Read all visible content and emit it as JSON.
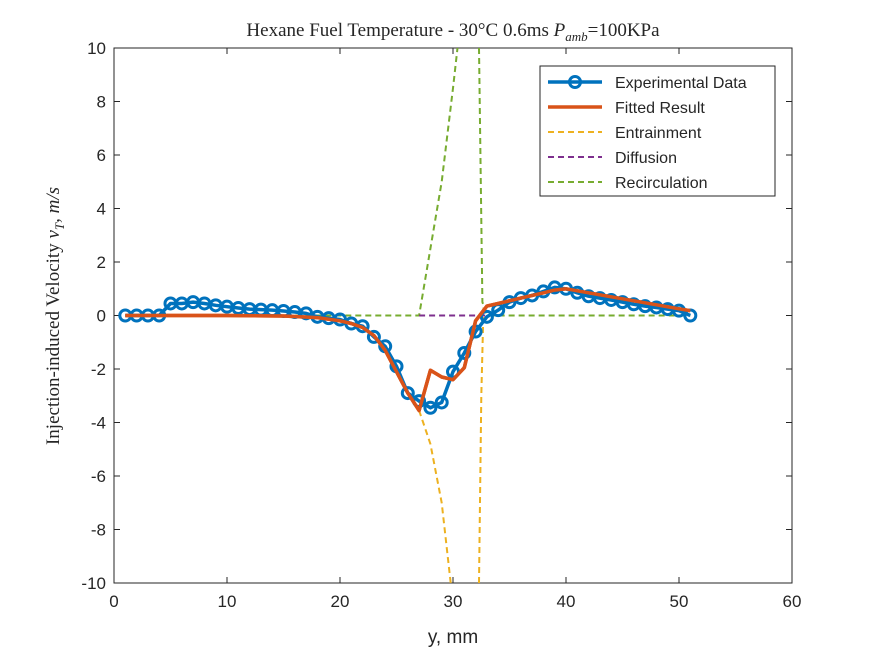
{
  "chart_data": {
    "type": "line",
    "title": "Hexane Fuel Temperature - 30°C 0.6ms P_amb=100KPa",
    "title_parts": {
      "prefix": "Hexane Fuel Temperature - 30°C 0.6ms ",
      "p_symbol": "P",
      "p_subscript": "amb",
      "suffix": "=100KPa"
    },
    "xlabel": "y, mm",
    "ylabel": "Injection-induced Velocity v_T, m/s",
    "ylabel_parts": {
      "prefix": "Injection-induced Velocity ",
      "v_symbol": "v",
      "v_subscript": "T",
      "suffix": ", m/s"
    },
    "xlim": [
      0,
      60
    ],
    "ylim": [
      -10,
      10
    ],
    "xticks": [
      0,
      10,
      20,
      30,
      40,
      50,
      60
    ],
    "yticks": [
      -10,
      -8,
      -6,
      -4,
      -2,
      0,
      2,
      4,
      6,
      8,
      10
    ],
    "grid": false,
    "legend_position": "top-right",
    "series": [
      {
        "name": "Experimental Data",
        "color": "#0072BD",
        "style": "solid-marker-circle",
        "x": [
          1,
          2,
          3,
          4,
          5,
          6,
          7,
          8,
          9,
          10,
          11,
          12,
          13,
          14,
          15,
          16,
          17,
          18,
          19,
          20,
          21,
          22,
          23,
          24,
          25,
          26,
          27,
          28,
          29,
          30,
          31,
          32,
          33,
          34,
          35,
          36,
          37,
          38,
          39,
          40,
          41,
          42,
          43,
          44,
          45,
          46,
          47,
          48,
          49,
          50,
          51
        ],
        "y": [
          0.0,
          0.0,
          0.0,
          0.0,
          0.45,
          0.45,
          0.5,
          0.45,
          0.38,
          0.33,
          0.28,
          0.24,
          0.22,
          0.2,
          0.17,
          0.13,
          0.08,
          -0.05,
          -0.1,
          -0.15,
          -0.3,
          -0.4,
          -0.8,
          -1.15,
          -1.9,
          -2.9,
          -3.2,
          -3.45,
          -3.25,
          -2.1,
          -1.4,
          -0.6,
          -0.05,
          0.2,
          0.5,
          0.65,
          0.75,
          0.9,
          1.05,
          1.0,
          0.85,
          0.72,
          0.65,
          0.58,
          0.5,
          0.42,
          0.35,
          0.3,
          0.24,
          0.18,
          0.0
        ]
      },
      {
        "name": "Fitted Result",
        "color": "#D95319",
        "style": "solid-thick",
        "x": [
          1,
          5,
          10,
          15,
          18,
          20,
          21,
          22,
          23,
          24,
          25,
          26,
          27,
          28,
          29,
          30,
          31,
          32,
          33,
          34,
          35,
          36,
          37,
          38,
          39,
          40,
          42,
          44,
          46,
          48,
          50,
          51
        ],
        "y": [
          0.0,
          0.0,
          0.0,
          -0.02,
          -0.08,
          -0.2,
          -0.3,
          -0.45,
          -0.75,
          -1.3,
          -2.1,
          -2.9,
          -3.55,
          -2.05,
          -2.3,
          -2.4,
          -1.95,
          -0.2,
          0.35,
          0.45,
          0.55,
          0.65,
          0.75,
          0.85,
          0.95,
          1.0,
          0.85,
          0.7,
          0.55,
          0.4,
          0.25,
          0.18
        ]
      },
      {
        "name": "Entrainment",
        "color": "#EDB120",
        "style": "dashed",
        "x": [
          1,
          5,
          10,
          15,
          18,
          20,
          21,
          22,
          23,
          24,
          25,
          26,
          27,
          28,
          29,
          29.8
        ],
        "y": [
          0.0,
          0.0,
          0.0,
          -0.02,
          -0.08,
          -0.2,
          -0.3,
          -0.45,
          -0.75,
          -1.3,
          -2.1,
          -2.9,
          -3.55,
          -4.8,
          -7.0,
          -10
        ]
      },
      {
        "name": "Diffusion",
        "color": "#7E2F8E",
        "style": "dashed",
        "x": [
          27,
          33
        ],
        "y": [
          0.0,
          0.0
        ]
      },
      {
        "name": "Recirculation",
        "color": "#77AC30",
        "style": "dashed",
        "x": [
          1,
          27,
          28,
          29,
          30,
          30.4
        ],
        "y": [
          0.0,
          0.0,
          2.5,
          5.0,
          8.5,
          10
        ]
      },
      {
        "name": "Recirculation",
        "legend": false,
        "color": "#77AC30",
        "style": "dashed",
        "x": [
          32.3,
          32.6,
          33,
          51
        ],
        "y": [
          10,
          0.5,
          0.0,
          0.0
        ]
      },
      {
        "name": "Entrainment",
        "legend": false,
        "color": "#EDB120",
        "style": "dashed",
        "x": [
          32.3,
          32.5,
          32.7
        ],
        "y": [
          -10,
          -3.0,
          0.3
        ]
      }
    ]
  }
}
